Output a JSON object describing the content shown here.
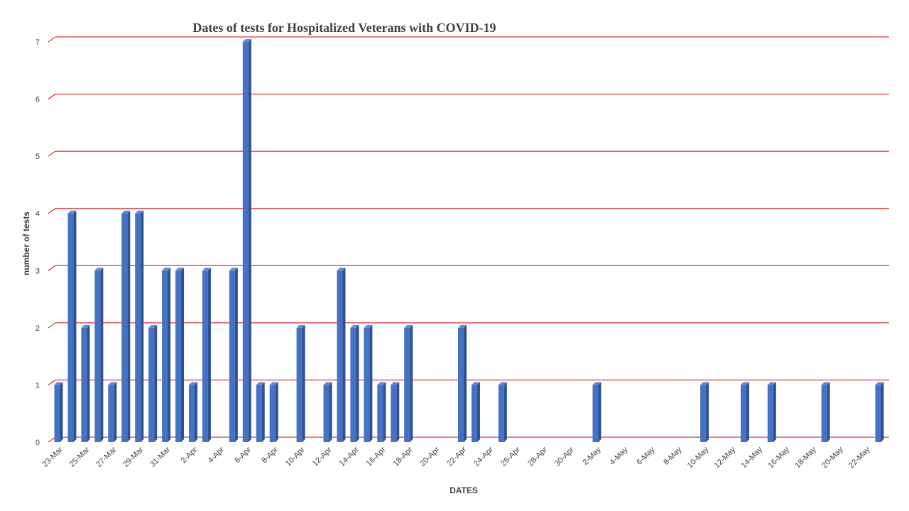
{
  "chart_data": {
    "type": "bar",
    "title": "Dates of tests for Hospitalized Veterans with COVID-19",
    "xlabel": "DATES",
    "ylabel": "number of tests",
    "ylim": [
      0,
      7
    ],
    "yticks": [
      0,
      1,
      2,
      3,
      4,
      5,
      6,
      7
    ],
    "grid": true,
    "style": "3d-column",
    "colors": {
      "bar_front": "#4472c4",
      "bar_side": "#2f528f",
      "bar_top": "#5b8bd9",
      "gridline": "#e00000",
      "text": "#404040"
    },
    "categories": [
      "23-Mar",
      "24-Mar",
      "25-Mar",
      "26-Mar",
      "27-Mar",
      "28-Mar",
      "29-Mar",
      "30-Mar",
      "31-Mar",
      "1-Apr",
      "2-Apr",
      "3-Apr",
      "4-Apr",
      "5-Apr",
      "6-Apr",
      "7-Apr",
      "8-Apr",
      "9-Apr",
      "10-Apr",
      "11-Apr",
      "12-Apr",
      "13-Apr",
      "14-Apr",
      "15-Apr",
      "16-Apr",
      "17-Apr",
      "18-Apr",
      "19-Apr",
      "20-Apr",
      "21-Apr",
      "22-Apr",
      "23-Apr",
      "24-Apr",
      "25-Apr",
      "26-Apr",
      "27-Apr",
      "28-Apr",
      "29-Apr",
      "30-Apr",
      "1-May",
      "2-May",
      "3-May",
      "4-May",
      "5-May",
      "6-May",
      "7-May",
      "8-May",
      "9-May",
      "10-May",
      "11-May",
      "12-May",
      "13-May",
      "14-May",
      "15-May",
      "16-May",
      "17-May",
      "18-May",
      "19-May",
      "20-May",
      "21-May",
      "22-May",
      "23-May"
    ],
    "values": [
      1,
      4,
      2,
      3,
      1,
      4,
      4,
      2,
      3,
      3,
      1,
      3,
      0,
      3,
      7,
      1,
      1,
      0,
      2,
      0,
      1,
      3,
      2,
      2,
      1,
      1,
      2,
      0,
      0,
      0,
      2,
      1,
      0,
      1,
      0,
      0,
      0,
      0,
      0,
      0,
      1,
      0,
      0,
      0,
      0,
      0,
      0,
      0,
      1,
      0,
      0,
      1,
      0,
      1,
      0,
      0,
      0,
      1,
      0,
      0,
      0,
      1
    ],
    "tick_labels": [
      "23-Mar",
      "25-Mar",
      "27-Mar",
      "29-Mar",
      "31-Mar",
      "2-Apr",
      "4-Apr",
      "6-Apr",
      "8-Apr",
      "10-Apr",
      "12-Apr",
      "14-Apr",
      "16-Apr",
      "18-Apr",
      "20-Apr",
      "22-Apr",
      "24-Apr",
      "26-Apr",
      "28-Apr",
      "30-Apr",
      "2-May",
      "4-May",
      "6-May",
      "8-May",
      "10-May",
      "12-May",
      "14-May",
      "16-May",
      "18-May",
      "20-May",
      "22-May"
    ]
  }
}
